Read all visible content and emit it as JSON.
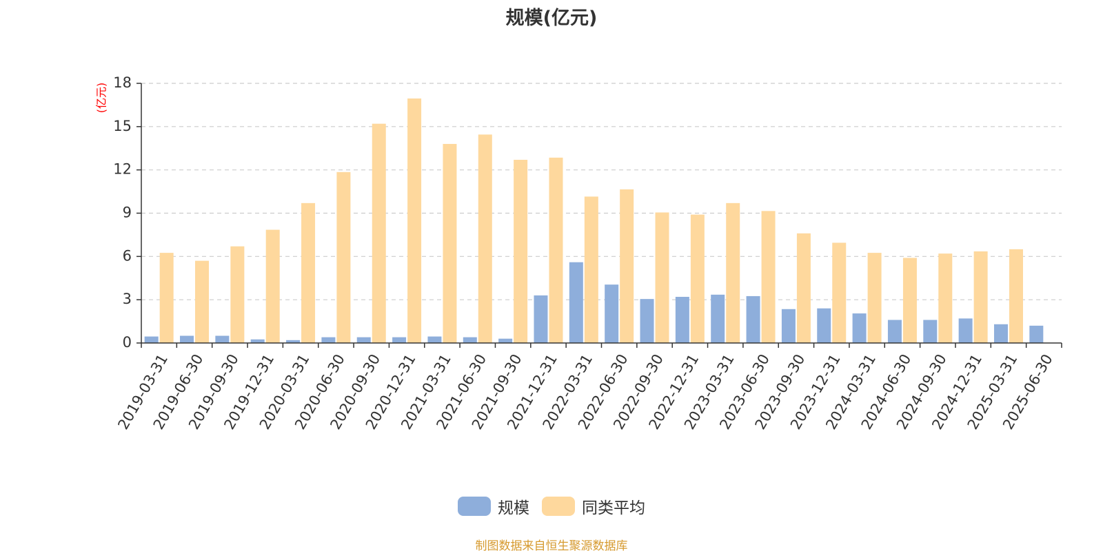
{
  "chart_data": {
    "type": "bar",
    "title": "规模(亿元)",
    "ylabel": "(亿元)",
    "xlabel": "",
    "ylim": [
      0,
      18
    ],
    "yticks": [
      0,
      3,
      6,
      9,
      12,
      15,
      18
    ],
    "grid": true,
    "legend_position": "bottom",
    "categories": [
      "2019-03-31",
      "2019-06-30",
      "2019-09-30",
      "2019-12-31",
      "2020-03-31",
      "2020-06-30",
      "2020-09-30",
      "2020-12-31",
      "2021-03-31",
      "2021-06-30",
      "2021-09-30",
      "2021-12-31",
      "2022-03-31",
      "2022-06-30",
      "2022-09-30",
      "2022-12-31",
      "2023-03-31",
      "2023-06-30",
      "2023-09-30",
      "2023-12-31",
      "2024-03-31",
      "2024-06-30",
      "2024-09-30",
      "2024-12-31",
      "2025-03-31",
      "2025-06-30"
    ],
    "series": [
      {
        "name": "规模",
        "color": "#8eaedb",
        "values": [
          0.45,
          0.5,
          0.5,
          0.25,
          0.2,
          0.4,
          0.4,
          0.4,
          0.45,
          0.4,
          0.3,
          3.3,
          5.6,
          4.05,
          3.05,
          3.2,
          3.35,
          3.25,
          2.35,
          2.4,
          2.05,
          1.6,
          1.6,
          1.7,
          1.3,
          1.2
        ]
      },
      {
        "name": "同类平均",
        "color": "#fed89d",
        "values": [
          6.25,
          5.7,
          6.7,
          7.85,
          9.7,
          11.85,
          15.2,
          16.95,
          13.8,
          14.45,
          12.7,
          12.85,
          10.15,
          10.65,
          9.05,
          8.9,
          9.7,
          9.15,
          7.6,
          6.95,
          6.25,
          5.9,
          6.2,
          6.35,
          6.5,
          null
        ]
      }
    ]
  },
  "footer": {
    "source_text": "制图数据来自恒生聚源数据库",
    "source_color": "#d69a2f"
  }
}
